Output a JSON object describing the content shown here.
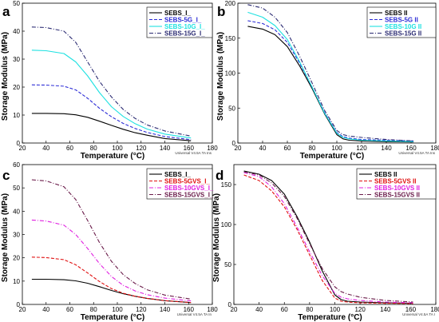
{
  "chart_data": [
    {
      "panel": "a",
      "type": "line",
      "xlabel": "Temperature (°C)",
      "ylabel": "Storage Modulus (MPa)",
      "xlim": [
        20,
        180
      ],
      "ylim": [
        0,
        50
      ],
      "xticks": [
        20,
        40,
        60,
        80,
        100,
        120,
        140,
        160,
        180
      ],
      "yticks": [
        0,
        10,
        20,
        30,
        40,
        50
      ],
      "footer": "Universal V4.5A TA Ins",
      "legend_position": "top-right",
      "series": [
        {
          "name": "SEBS_I_",
          "color": "#000000",
          "dash": "solid",
          "x": [
            28,
            40,
            55,
            65,
            75,
            85,
            95,
            105,
            115,
            125,
            140,
            162
          ],
          "y": [
            10.6,
            10.6,
            10.5,
            10.1,
            9.2,
            7.8,
            6.3,
            4.9,
            3.7,
            2.8,
            1.6,
            0.8
          ]
        },
        {
          "name": "SEBS-5G_I_",
          "color": "#2c2cd6",
          "dash": "dashed",
          "x": [
            28,
            40,
            55,
            65,
            75,
            85,
            95,
            105,
            115,
            125,
            140,
            162
          ],
          "y": [
            20.8,
            20.7,
            20.3,
            19.0,
            16.0,
            12.4,
            9.4,
            7.0,
            5.2,
            3.8,
            2.3,
            1.2
          ]
        },
        {
          "name": "SEBS-10G_I_",
          "color": "#1ee1e1",
          "dash": "solid",
          "x": [
            28,
            40,
            55,
            65,
            75,
            85,
            95,
            105,
            115,
            125,
            140,
            162
          ],
          "y": [
            33.2,
            33.0,
            32.0,
            29.0,
            24.0,
            18.0,
            13.0,
            9.5,
            6.9,
            5.0,
            3.2,
            1.8
          ]
        },
        {
          "name": "SEBS-15G_I_",
          "color": "#2a2a72",
          "dash": "dashdot",
          "x": [
            28,
            40,
            55,
            65,
            75,
            85,
            95,
            105,
            115,
            125,
            140,
            162
          ],
          "y": [
            41.5,
            41.3,
            40.0,
            36.0,
            29.0,
            22.0,
            16.5,
            12.0,
            8.8,
            6.5,
            4.3,
            2.5
          ]
        }
      ]
    },
    {
      "panel": "b",
      "type": "line",
      "xlabel": "Temperature (°C)",
      "ylabel": "Storage Modulus (MPa)",
      "xlim": [
        20,
        180
      ],
      "ylim": [
        0,
        200
      ],
      "xticks": [
        20,
        40,
        60,
        80,
        100,
        120,
        140,
        160,
        180
      ],
      "yticks": [
        0,
        50,
        100,
        150,
        200
      ],
      "footer": "Universal V4.5A TA Ins",
      "legend_position": "top-right",
      "series": [
        {
          "name": "SEBS II",
          "color": "#000000",
          "dash": "solid",
          "x": [
            28,
            40,
            50,
            60,
            70,
            80,
            90,
            100,
            105,
            110,
            120,
            140,
            162
          ],
          "y": [
            167,
            163,
            155,
            138,
            110,
            78,
            42,
            12,
            6,
            4,
            3,
            2,
            1.5
          ]
        },
        {
          "name": "SEBS-5G II",
          "color": "#2c2cd6",
          "dash": "dashed",
          "x": [
            28,
            40,
            50,
            60,
            70,
            80,
            90,
            100,
            105,
            110,
            120,
            140,
            162
          ],
          "y": [
            175,
            171,
            162,
            144,
            114,
            80,
            44,
            15,
            9,
            7,
            5,
            4,
            3
          ]
        },
        {
          "name": "SEBS-10G II",
          "color": "#1ee1e1",
          "dash": "solid",
          "x": [
            28,
            40,
            50,
            60,
            70,
            80,
            90,
            100,
            105,
            110,
            120,
            140,
            162
          ],
          "y": [
            187,
            180,
            168,
            148,
            116,
            80,
            43,
            14,
            8,
            6,
            4,
            3,
            2
          ]
        },
        {
          "name": "SEBS-15G II",
          "color": "#2a2a72",
          "dash": "dashdot",
          "x": [
            28,
            40,
            50,
            60,
            70,
            80,
            90,
            100,
            105,
            110,
            120,
            140,
            162
          ],
          "y": [
            198,
            193,
            180,
            158,
            124,
            86,
            47,
            18,
            12,
            10,
            8,
            5,
            3
          ]
        }
      ]
    },
    {
      "panel": "c",
      "type": "line",
      "xlabel": "Temperature (°C)",
      "ylabel": "Storage Modulus (MPa)",
      "xlim": [
        20,
        180
      ],
      "ylim": [
        0,
        60
      ],
      "xticks": [
        20,
        40,
        60,
        80,
        100,
        120,
        140,
        160,
        180
      ],
      "yticks": [
        0,
        10,
        20,
        30,
        40,
        50,
        60
      ],
      "footer": "Universal V4.5A TA In",
      "legend_position": "top-right",
      "series": [
        {
          "name": "SEBS_I_",
          "color": "#000000",
          "dash": "solid",
          "x": [
            28,
            40,
            55,
            65,
            75,
            85,
            95,
            105,
            115,
            125,
            140,
            162
          ],
          "y": [
            10.8,
            10.8,
            10.6,
            10.1,
            9.1,
            7.6,
            6.0,
            4.6,
            3.5,
            2.6,
            1.6,
            0.8
          ]
        },
        {
          "name": "SEBS-5GVS_I_",
          "color": "#e01010",
          "dash": "dashed",
          "x": [
            28,
            40,
            55,
            65,
            75,
            85,
            95,
            105,
            115,
            125,
            140,
            162
          ],
          "y": [
            20.3,
            20.1,
            19.2,
            17.0,
            13.5,
            9.8,
            6.8,
            4.8,
            3.5,
            2.6,
            1.6,
            0.8
          ]
        },
        {
          "name": "SEBS-10GVS_I_",
          "color": "#e020e0",
          "dash": "dashdot",
          "x": [
            28,
            40,
            55,
            65,
            75,
            85,
            95,
            105,
            115,
            125,
            140,
            162
          ],
          "y": [
            36.2,
            35.8,
            34.0,
            30.0,
            24.0,
            17.5,
            12.0,
            8.2,
            5.8,
            4.2,
            2.7,
            1.5
          ]
        },
        {
          "name": "SEBS-15GVS_I_",
          "color": "#6a1b4a",
          "dash": "dashdot",
          "x": [
            28,
            40,
            55,
            65,
            75,
            85,
            95,
            105,
            115,
            125,
            140,
            162
          ],
          "y": [
            53.5,
            53.0,
            50.5,
            45.0,
            36.0,
            26.5,
            18.5,
            12.8,
            9.0,
            6.3,
            4.0,
            2.3
          ]
        }
      ]
    },
    {
      "panel": "d",
      "type": "line",
      "xlabel": "Temperature (°C)",
      "ylabel": "Storage Modulus (MPa)",
      "xlim": [
        20,
        180
      ],
      "ylim": [
        0,
        175
      ],
      "xticks": [
        20,
        40,
        60,
        80,
        100,
        120,
        140,
        160,
        180
      ],
      "yticks": [
        0,
        50,
        100,
        150
      ],
      "footer": "Universal V4.5A TA I",
      "legend_position": "top-right",
      "series": [
        {
          "name": "SEBS II",
          "color": "#000000",
          "dash": "solid",
          "x": [
            28,
            40,
            50,
            60,
            70,
            80,
            90,
            100,
            105,
            110,
            120,
            140,
            162
          ],
          "y": [
            167,
            163,
            155,
            138,
            110,
            78,
            42,
            12,
            6,
            4,
            3,
            2,
            1.5
          ]
        },
        {
          "name": "SEBS-5GVS II",
          "color": "#e01010",
          "dash": "dashed",
          "x": [
            28,
            40,
            50,
            60,
            70,
            80,
            90,
            100,
            105,
            110,
            120,
            140,
            162
          ],
          "y": [
            162,
            155,
            142,
            122,
            94,
            62,
            30,
            8,
            4,
            3,
            2,
            1.5,
            1
          ]
        },
        {
          "name": "SEBS-10GVS II",
          "color": "#e020e0",
          "dash": "dashdot",
          "x": [
            28,
            40,
            50,
            60,
            70,
            80,
            90,
            100,
            105,
            110,
            120,
            140,
            162
          ],
          "y": [
            165,
            160,
            147,
            126,
            97,
            66,
            36,
            14,
            9,
            7,
            5,
            3,
            2
          ]
        },
        {
          "name": "SEBS-15GVS II",
          "color": "#6a1b4a",
          "dash": "dashdot",
          "x": [
            28,
            40,
            50,
            60,
            70,
            80,
            90,
            100,
            105,
            110,
            120,
            140,
            162
          ],
          "y": [
            166,
            162,
            152,
            135,
            108,
            76,
            45,
            22,
            16,
            13,
            9,
            5,
            3
          ]
        }
      ]
    }
  ]
}
